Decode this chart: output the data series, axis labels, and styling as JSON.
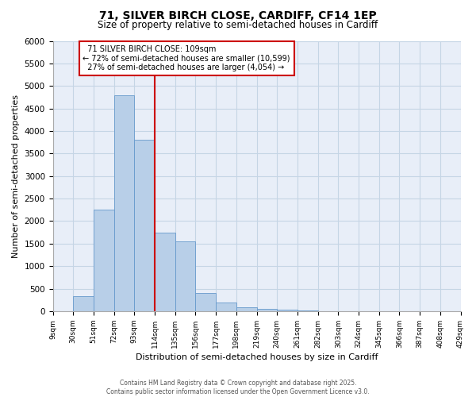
{
  "title_line1": "71, SILVER BIRCH CLOSE, CARDIFF, CF14 1EP",
  "title_line2": "Size of property relative to semi-detached houses in Cardiff",
  "xlabel": "Distribution of semi-detached houses by size in Cardiff",
  "ylabel": "Number of semi-detached properties",
  "property_label": "71 SILVER BIRCH CLOSE: 109sqm",
  "pct_smaller": 72,
  "count_smaller": 10599,
  "pct_larger": 27,
  "count_larger": 4054,
  "bin_labels": [
    "9sqm",
    "30sqm",
    "51sqm",
    "72sqm",
    "93sqm",
    "114sqm",
    "135sqm",
    "156sqm",
    "177sqm",
    "198sqm",
    "219sqm",
    "240sqm",
    "261sqm",
    "282sqm",
    "303sqm",
    "324sqm",
    "345sqm",
    "366sqm",
    "387sqm",
    "408sqm",
    "429sqm"
  ],
  "bin_left_edges": [
    9,
    30,
    51,
    72,
    93,
    114,
    135,
    156,
    177,
    198,
    219,
    240,
    261,
    282,
    303,
    324,
    345,
    366,
    387,
    408
  ],
  "bin_width": 21,
  "bar_heights": [
    5,
    330,
    2250,
    4800,
    3800,
    1750,
    1550,
    400,
    200,
    80,
    60,
    30,
    15,
    8,
    3,
    2,
    1,
    0,
    0,
    0
  ],
  "bar_color": "#b8cfe8",
  "bar_edge_color": "#6699cc",
  "red_line_x": 114,
  "annotation_box_color": "#cc0000",
  "ylim": [
    0,
    6000
  ],
  "yticks": [
    0,
    500,
    1000,
    1500,
    2000,
    2500,
    3000,
    3500,
    4000,
    4500,
    5000,
    5500,
    6000
  ],
  "xlim_left": 9,
  "xlim_right": 429,
  "grid_color": "#c5d5e5",
  "background_color": "#e8eef8",
  "footer_line1": "Contains HM Land Registry data © Crown copyright and database right 2025.",
  "footer_line2": "Contains public sector information licensed under the Open Government Licence v3.0."
}
